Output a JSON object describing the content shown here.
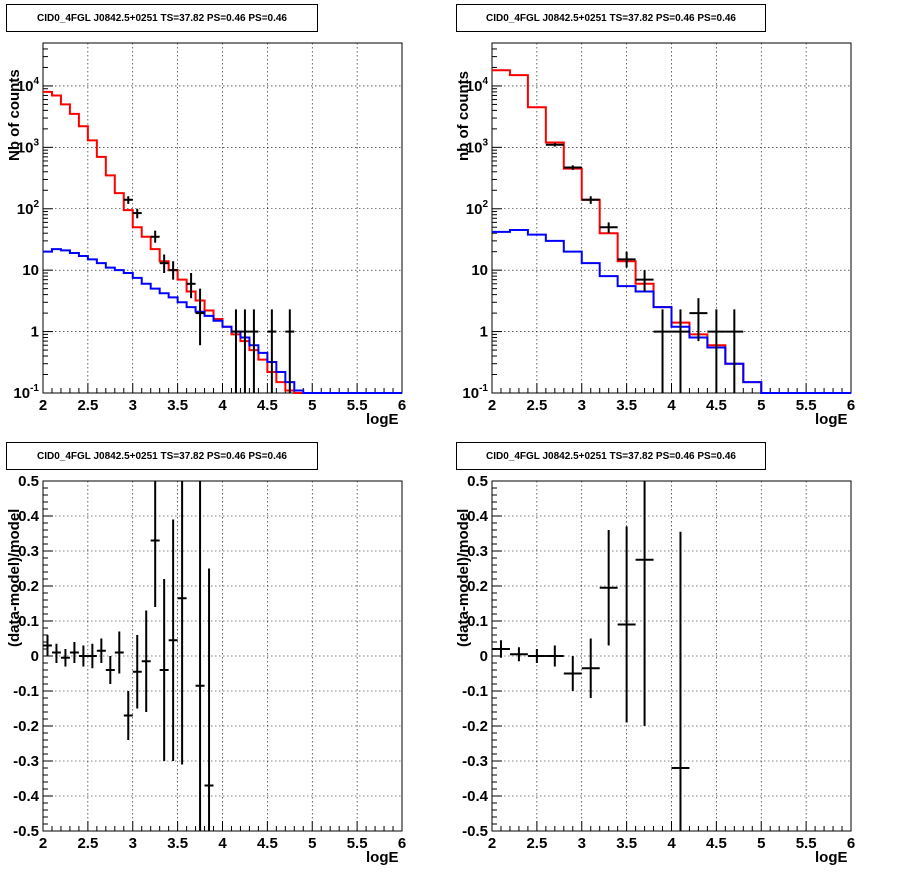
{
  "chart_data": [
    {
      "type": "line",
      "title": "CID0_4FGL J0842.5+0251 TS=37.82 PS=0.46 PS=0.46",
      "xlabel": "logE",
      "ylabel": "Nb of counts",
      "xlim": [
        2,
        6
      ],
      "ylim": [
        0.1,
        50000
      ],
      "yscale": "log",
      "grid": true,
      "x_ticks": [
        "2",
        "2.5",
        "3",
        "3.5",
        "4",
        "4.5",
        "5",
        "5.5",
        "6"
      ],
      "y_ticks": [
        "10^{-1}",
        "1",
        "10",
        "10^{2}",
        "10^{3}",
        "10^{4}"
      ],
      "bin_edges": [
        2,
        2.1,
        2.2,
        2.3,
        2.4,
        2.5,
        2.6,
        2.7,
        2.8,
        2.9,
        3.0,
        3.1,
        3.2,
        3.3,
        3.4,
        3.5,
        3.6,
        3.7,
        3.8,
        3.9,
        4.0,
        4.1,
        4.2,
        4.3,
        4.4,
        4.5,
        4.6,
        4.7,
        4.8,
        4.9,
        5.0,
        5.1,
        5.2,
        5.3,
        5.4,
        5.5,
        5.6,
        5.7,
        5.8,
        5.9,
        6.0
      ],
      "series": [
        {
          "color": "#ff0000",
          "values": [
            8000,
            7000,
            5000,
            3500,
            2200,
            1300,
            700,
            350,
            180,
            95,
            50,
            35,
            22,
            14,
            10,
            7,
            4.5,
            3.2,
            2.2,
            1.6,
            1.2,
            0.9,
            0.7,
            0.5,
            0.35,
            0.22,
            0.15,
            0.11,
            0.1,
            0.1,
            0.1,
            0.1,
            0.1,
            0.1,
            0.1,
            0.1,
            0.1,
            0.1,
            0.1,
            0.1
          ]
        },
        {
          "color": "#0000ff",
          "values": [
            20,
            22,
            21,
            19,
            17,
            15,
            13,
            11,
            10,
            9,
            7.5,
            6,
            5,
            4.2,
            3.6,
            3,
            2.5,
            2.1,
            1.8,
            1.5,
            1.2,
            1.0,
            0.8,
            0.6,
            0.45,
            0.32,
            0.22,
            0.15,
            0.11,
            0.1,
            0.1,
            0.1,
            0.1,
            0.1,
            0.1,
            0.1,
            0.1,
            0.1,
            0.1,
            0.1
          ]
        }
      ],
      "points": [
        {
          "x": 2.95,
          "y": 140,
          "ylo": 120,
          "yhi": 160,
          "xerr": 0.05
        },
        {
          "x": 3.05,
          "y": 85,
          "ylo": 70,
          "yhi": 100,
          "xerr": 0.05
        },
        {
          "x": 3.25,
          "y": 35,
          "ylo": 28,
          "yhi": 44,
          "xerr": 0.05
        },
        {
          "x": 3.35,
          "y": 13,
          "ylo": 9,
          "yhi": 18,
          "xerr": 0.05
        },
        {
          "x": 3.45,
          "y": 10,
          "ylo": 7,
          "yhi": 14,
          "xerr": 0.05
        },
        {
          "x": 3.65,
          "y": 6,
          "ylo": 3.5,
          "yhi": 9,
          "xerr": 0.05
        },
        {
          "x": 3.75,
          "y": 2,
          "ylo": 0.6,
          "yhi": 5,
          "xerr": 0.05
        },
        {
          "x": 4.15,
          "y": 1,
          "ylo": 0.1,
          "yhi": 2.3,
          "xerr": 0.05
        },
        {
          "x": 4.25,
          "y": 1,
          "ylo": 0.1,
          "yhi": 2.3,
          "xerr": 0.05
        },
        {
          "x": 4.35,
          "y": 1,
          "ylo": 0.1,
          "yhi": 2.3,
          "xerr": 0.05
        },
        {
          "x": 4.55,
          "y": 1,
          "ylo": 0.1,
          "yhi": 2.3,
          "xerr": 0.05
        },
        {
          "x": 4.75,
          "y": 1,
          "ylo": 0.1,
          "yhi": 2.3,
          "xerr": 0.05
        }
      ]
    },
    {
      "type": "line",
      "title": "CID0_4FGL J0842.5+0251 TS=37.82 PS=0.46 PS=0.46",
      "xlabel": "logE",
      "ylabel": "nb of counts",
      "xlim": [
        2,
        6
      ],
      "ylim": [
        0.1,
        50000
      ],
      "yscale": "log",
      "grid": true,
      "x_ticks": [
        "2",
        "2.5",
        "3",
        "3.5",
        "4",
        "4.5",
        "5",
        "5.5",
        "6"
      ],
      "y_ticks": [
        "10^{-1}",
        "1",
        "10",
        "10^{2}",
        "10^{3}",
        "10^{4}"
      ],
      "bin_edges": [
        2,
        2.2,
        2.4,
        2.6,
        2.8,
        3.0,
        3.2,
        3.4,
        3.6,
        3.8,
        4.0,
        4.2,
        4.4,
        4.6,
        4.8,
        5.0,
        5.2,
        5.4,
        5.6,
        5.8,
        6.0
      ],
      "series": [
        {
          "color": "#ff0000",
          "values": [
            18000,
            15000,
            4500,
            1200,
            450,
            140,
            40,
            14,
            6,
            2.5,
            1.4,
            0.9,
            0.6,
            0.3,
            0.15,
            0.1,
            0.1,
            0.1,
            0.1,
            0.1
          ]
        },
        {
          "color": "#0000ff",
          "values": [
            42,
            45,
            38,
            30,
            20,
            13,
            8,
            5.5,
            4.5,
            2.5,
            1.2,
            0.8,
            0.55,
            0.3,
            0.15,
            0.1,
            0.1,
            0.1,
            0.1,
            0.1
          ]
        }
      ],
      "points": [
        {
          "x": 2.7,
          "y": 1100,
          "ylo": 1030,
          "yhi": 1170,
          "xerr": 0.1
        },
        {
          "x": 2.9,
          "y": 470,
          "ylo": 430,
          "yhi": 510,
          "xerr": 0.1
        },
        {
          "x": 3.1,
          "y": 140,
          "ylo": 120,
          "yhi": 160,
          "xerr": 0.1
        },
        {
          "x": 3.3,
          "y": 50,
          "ylo": 40,
          "yhi": 60,
          "xerr": 0.1
        },
        {
          "x": 3.5,
          "y": 15,
          "ylo": 11,
          "yhi": 20,
          "xerr": 0.1
        },
        {
          "x": 3.7,
          "y": 7,
          "ylo": 4.5,
          "yhi": 10,
          "xerr": 0.1
        },
        {
          "x": 3.9,
          "y": 1,
          "ylo": 0.1,
          "yhi": 2.3,
          "xerr": 0.1
        },
        {
          "x": 4.1,
          "y": 1,
          "ylo": 0.1,
          "yhi": 2.3,
          "xerr": 0.1
        },
        {
          "x": 4.3,
          "y": 2,
          "ylo": 0.7,
          "yhi": 3.5,
          "xerr": 0.1
        },
        {
          "x": 4.5,
          "y": 1,
          "ylo": 0.1,
          "yhi": 2.3,
          "xerr": 0.1
        },
        {
          "x": 4.7,
          "y": 1,
          "ylo": 0.1,
          "yhi": 2.3,
          "xerr": 0.1
        }
      ]
    },
    {
      "type": "scatter",
      "title": "CID0_4FGL J0842.5+0251 TS=37.82 PS=0.46 PS=0.46",
      "xlabel": "logE",
      "ylabel": "(data-model)/model",
      "xlim": [
        2,
        6
      ],
      "ylim": [
        -0.5,
        0.5
      ],
      "grid": true,
      "x_ticks": [
        "2",
        "2.5",
        "3",
        "3.5",
        "4",
        "4.5",
        "5",
        "5.5",
        "6"
      ],
      "y_ticks": [
        "-0.5",
        "-0.4",
        "-0.3",
        "-0.2",
        "-0.1",
        "0",
        "0.1",
        "0.2",
        "0.3",
        "0.4",
        "0.5"
      ],
      "points": [
        {
          "x": 2.05,
          "y": 0.03,
          "ylo": 0.0,
          "yhi": 0.06,
          "xerr": 0.05
        },
        {
          "x": 2.15,
          "y": 0.01,
          "ylo": -0.02,
          "yhi": 0.035,
          "xerr": 0.05
        },
        {
          "x": 2.25,
          "y": -0.005,
          "ylo": -0.03,
          "yhi": 0.02,
          "xerr": 0.05
        },
        {
          "x": 2.35,
          "y": 0.01,
          "ylo": -0.02,
          "yhi": 0.04,
          "xerr": 0.05
        },
        {
          "x": 2.45,
          "y": 0.0,
          "ylo": -0.03,
          "yhi": 0.03,
          "xerr": 0.05
        },
        {
          "x": 2.55,
          "y": 0.0,
          "ylo": -0.035,
          "yhi": 0.035,
          "xerr": 0.05
        },
        {
          "x": 2.65,
          "y": 0.015,
          "ylo": -0.02,
          "yhi": 0.05,
          "xerr": 0.05
        },
        {
          "x": 2.75,
          "y": -0.04,
          "ylo": -0.08,
          "yhi": 0.0,
          "xerr": 0.05
        },
        {
          "x": 2.85,
          "y": 0.01,
          "ylo": -0.05,
          "yhi": 0.07,
          "xerr": 0.05
        },
        {
          "x": 2.95,
          "y": -0.17,
          "ylo": -0.24,
          "yhi": -0.1,
          "xerr": 0.05
        },
        {
          "x": 3.05,
          "y": -0.045,
          "ylo": -0.15,
          "yhi": 0.06,
          "xerr": 0.05
        },
        {
          "x": 3.15,
          "y": -0.015,
          "ylo": -0.16,
          "yhi": 0.13,
          "xerr": 0.05
        },
        {
          "x": 3.25,
          "y": 0.33,
          "ylo": 0.14,
          "yhi": 0.5,
          "xerr": 0.05
        },
        {
          "x": 3.35,
          "y": -0.04,
          "ylo": -0.3,
          "yhi": 0.22,
          "xerr": 0.05
        },
        {
          "x": 3.45,
          "y": 0.045,
          "ylo": -0.3,
          "yhi": 0.39,
          "xerr": 0.05
        },
        {
          "x": 3.55,
          "y": 0.165,
          "ylo": -0.31,
          "yhi": 0.5,
          "xerr": 0.05
        },
        {
          "x": 3.75,
          "y": -0.085,
          "ylo": -0.5,
          "yhi": 0.5,
          "xerr": 0.05
        },
        {
          "x": 3.85,
          "y": -0.37,
          "ylo": -0.5,
          "yhi": 0.25,
          "xerr": 0.05
        }
      ]
    },
    {
      "type": "scatter",
      "title": "CID0_4FGL J0842.5+0251 TS=37.82 PS=0.46 PS=0.46",
      "xlabel": "logE",
      "ylabel": "(data-model)/model",
      "xlim": [
        2,
        6
      ],
      "ylim": [
        -0.5,
        0.5
      ],
      "grid": true,
      "x_ticks": [
        "2",
        "2.5",
        "3",
        "3.5",
        "4",
        "4.5",
        "5",
        "5.5",
        "6"
      ],
      "y_ticks": [
        "-0.5",
        "-0.4",
        "-0.3",
        "-0.2",
        "-0.1",
        "0",
        "0.1",
        "0.2",
        "0.3",
        "0.4",
        "0.5"
      ],
      "points": [
        {
          "x": 2.1,
          "y": 0.02,
          "ylo": -0.005,
          "yhi": 0.045,
          "xerr": 0.1
        },
        {
          "x": 2.3,
          "y": 0.005,
          "ylo": -0.015,
          "yhi": 0.025,
          "xerr": 0.1
        },
        {
          "x": 2.5,
          "y": 0.0,
          "ylo": -0.02,
          "yhi": 0.02,
          "xerr": 0.1
        },
        {
          "x": 2.7,
          "y": 0.0,
          "ylo": -0.03,
          "yhi": 0.03,
          "xerr": 0.1
        },
        {
          "x": 2.9,
          "y": -0.05,
          "ylo": -0.1,
          "yhi": 0.0,
          "xerr": 0.1
        },
        {
          "x": 3.1,
          "y": -0.035,
          "ylo": -0.12,
          "yhi": 0.05,
          "xerr": 0.1
        },
        {
          "x": 3.3,
          "y": 0.195,
          "ylo": 0.03,
          "yhi": 0.36,
          "xerr": 0.1
        },
        {
          "x": 3.5,
          "y": 0.09,
          "ylo": -0.19,
          "yhi": 0.37,
          "xerr": 0.1
        },
        {
          "x": 3.7,
          "y": 0.275,
          "ylo": -0.2,
          "yhi": 0.5,
          "xerr": 0.1
        },
        {
          "x": 4.1,
          "y": -0.32,
          "ylo": -0.5,
          "yhi": 0.355,
          "xerr": 0.1
        }
      ]
    }
  ]
}
